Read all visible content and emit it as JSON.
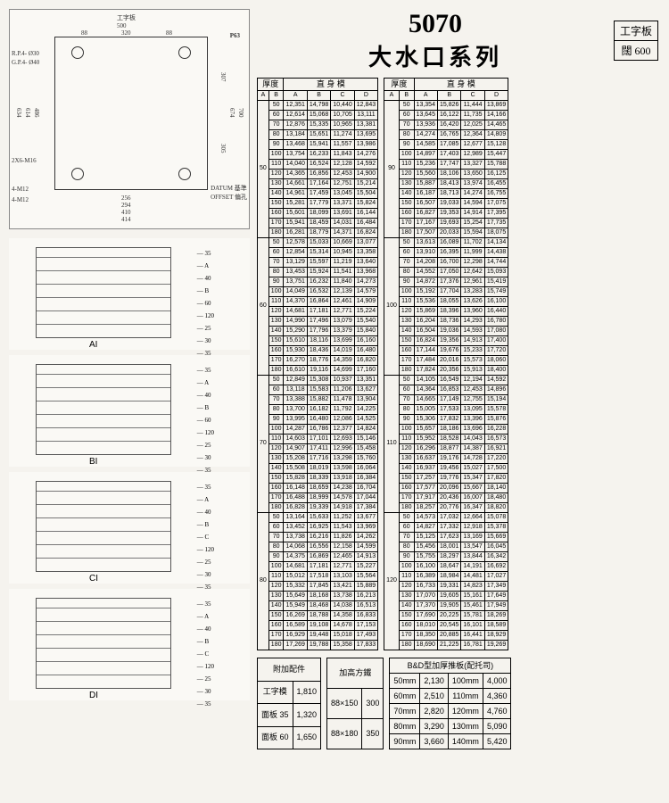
{
  "title": {
    "number": "5070",
    "cn": "大水口系列"
  },
  "sidebox": {
    "line1": "工字板",
    "line2": "闊 600"
  },
  "plan": {
    "top_label": "工字板",
    "dims_top": [
      "500",
      "320",
      "88",
      "88"
    ],
    "p_label": "P63",
    "rp": "R.P.4- Ø30",
    "gp": "G.P.4- Ø40",
    "left_dims": [
      "634",
      "614",
      "486"
    ],
    "right_dims": [
      "674",
      "700",
      "307",
      "305"
    ],
    "bottom_dims": [
      "256",
      "294",
      "410",
      "414"
    ],
    "holes": [
      "2X6-M16",
      "4-M12",
      "4-M12"
    ],
    "datum": "DATUM 基準\nOFFSET 偏孔"
  },
  "molds": [
    {
      "label": "AI",
      "dims": [
        "35",
        "A",
        "40",
        "B",
        "60",
        "120",
        "25",
        "30",
        "35"
      ]
    },
    {
      "label": "BI",
      "dims": [
        "35",
        "A",
        "40",
        "B",
        "60",
        "120",
        "25",
        "30",
        "35"
      ]
    },
    {
      "label": "CI",
      "dims": [
        "35",
        "A",
        "40",
        "B",
        "C",
        "120",
        "25",
        "30",
        "35"
      ]
    },
    {
      "label": "DI",
      "dims": [
        "35",
        "A",
        "40",
        "B",
        "C",
        "120",
        "25",
        "30",
        "35"
      ]
    }
  ],
  "table_header": {
    "thick": "厚度",
    "body": "直  身  模",
    "cols": [
      "A",
      "B",
      "A",
      "B",
      "C",
      "D"
    ]
  },
  "left_groups": [
    {
      "a": "50",
      "rows": [
        [
          "50",
          "12,351",
          "14,798",
          "10,440",
          "12,843"
        ],
        [
          "60",
          "12,614",
          "15,068",
          "10,705",
          "13,111"
        ],
        [
          "70",
          "12,876",
          "15,335",
          "10,965",
          "13,381"
        ],
        [
          "80",
          "13,184",
          "15,651",
          "11,274",
          "13,695"
        ],
        [
          "90",
          "13,468",
          "15,941",
          "11,557",
          "13,986"
        ],
        [
          "100",
          "13,754",
          "16,233",
          "11,843",
          "14,276"
        ],
        [
          "110",
          "14,040",
          "16,524",
          "12,128",
          "14,592"
        ],
        [
          "120",
          "14,365",
          "16,856",
          "12,453",
          "14,900"
        ],
        [
          "130",
          "14,661",
          "17,164",
          "12,751",
          "15,214"
        ],
        [
          "140",
          "14,961",
          "17,459",
          "13,045",
          "15,504"
        ],
        [
          "150",
          "15,281",
          "17,779",
          "13,371",
          "15,824"
        ],
        [
          "160",
          "15,601",
          "18,099",
          "13,691",
          "16,144"
        ],
        [
          "170",
          "15,941",
          "18,459",
          "14,031",
          "16,484"
        ],
        [
          "180",
          "16,281",
          "18,779",
          "14,371",
          "16,824"
        ]
      ]
    },
    {
      "a": "60",
      "rows": [
        [
          "50",
          "12,578",
          "15,033",
          "10,669",
          "13,077"
        ],
        [
          "60",
          "12,854",
          "15,314",
          "10,945",
          "13,358"
        ],
        [
          "70",
          "13,129",
          "15,597",
          "11,219",
          "13,640"
        ],
        [
          "80",
          "13,453",
          "15,924",
          "11,541",
          "13,968"
        ],
        [
          "90",
          "13,751",
          "16,232",
          "11,840",
          "14,273"
        ],
        [
          "100",
          "14,049",
          "16,532",
          "12,139",
          "14,579"
        ],
        [
          "110",
          "14,370",
          "16,864",
          "12,461",
          "14,909"
        ],
        [
          "120",
          "14,681",
          "17,181",
          "12,771",
          "15,224"
        ],
        [
          "130",
          "14,990",
          "17,496",
          "13,079",
          "15,540"
        ],
        [
          "140",
          "15,290",
          "17,796",
          "13,379",
          "15,840"
        ],
        [
          "150",
          "15,610",
          "18,116",
          "13,699",
          "16,160"
        ],
        [
          "160",
          "15,930",
          "18,436",
          "14,019",
          "16,480"
        ],
        [
          "170",
          "16,270",
          "18,776",
          "14,359",
          "16,820"
        ],
        [
          "180",
          "16,610",
          "19,116",
          "14,699",
          "17,160"
        ]
      ]
    },
    {
      "a": "70",
      "rows": [
        [
          "50",
          "12,849",
          "15,308",
          "10,937",
          "13,351"
        ],
        [
          "60",
          "13,118",
          "15,583",
          "11,206",
          "13,627"
        ],
        [
          "70",
          "13,388",
          "15,882",
          "11,478",
          "13,904"
        ],
        [
          "80",
          "13,700",
          "16,182",
          "11,792",
          "14,225"
        ],
        [
          "90",
          "13,995",
          "16,480",
          "12,086",
          "14,525"
        ],
        [
          "100",
          "14,287",
          "16,786",
          "12,377",
          "14,824"
        ],
        [
          "110",
          "14,603",
          "17,101",
          "12,693",
          "15,146"
        ],
        [
          "120",
          "14,907",
          "17,411",
          "12,996",
          "15,458"
        ],
        [
          "130",
          "15,208",
          "17,716",
          "13,298",
          "15,760"
        ],
        [
          "140",
          "15,508",
          "18,019",
          "13,598",
          "16,064"
        ],
        [
          "150",
          "15,828",
          "18,339",
          "13,918",
          "16,384"
        ],
        [
          "160",
          "16,148",
          "18,659",
          "14,238",
          "16,704"
        ],
        [
          "170",
          "16,488",
          "18,999",
          "14,578",
          "17,044"
        ],
        [
          "180",
          "16,828",
          "19,339",
          "14,918",
          "17,384"
        ]
      ]
    },
    {
      "a": "80",
      "rows": [
        [
          "50",
          "13,164",
          "15,633",
          "11,252",
          "13,677"
        ],
        [
          "60",
          "13,452",
          "16,925",
          "11,543",
          "13,969"
        ],
        [
          "70",
          "13,738",
          "16,216",
          "11,826",
          "14,262"
        ],
        [
          "80",
          "14,068",
          "16,556",
          "12,158",
          "14,599"
        ],
        [
          "90",
          "14,375",
          "16,869",
          "12,465",
          "14,913"
        ],
        [
          "100",
          "14,681",
          "17,181",
          "12,771",
          "15,227"
        ],
        [
          "110",
          "15,012",
          "17,518",
          "13,103",
          "15,564"
        ],
        [
          "120",
          "15,332",
          "17,845",
          "13,421",
          "15,889"
        ],
        [
          "130",
          "15,649",
          "18,168",
          "13,738",
          "16,213"
        ],
        [
          "140",
          "15,949",
          "18,468",
          "14,038",
          "16,513"
        ],
        [
          "150",
          "16,269",
          "18,788",
          "14,358",
          "16,833"
        ],
        [
          "160",
          "16,589",
          "19,108",
          "14,678",
          "17,153"
        ],
        [
          "170",
          "16,929",
          "19,448",
          "15,018",
          "17,493"
        ],
        [
          "180",
          "17,269",
          "19,788",
          "15,358",
          "17,833"
        ]
      ]
    }
  ],
  "right_groups": [
    {
      "a": "90",
      "rows": [
        [
          "50",
          "13,354",
          "15,826",
          "11,444",
          "13,869"
        ],
        [
          "60",
          "13,645",
          "16,122",
          "11,735",
          "14,166"
        ],
        [
          "70",
          "13,936",
          "16,420",
          "12,025",
          "14,465"
        ],
        [
          "80",
          "14,274",
          "16,765",
          "12,364",
          "14,809"
        ],
        [
          "90",
          "14,585",
          "17,085",
          "12,677",
          "15,128"
        ],
        [
          "100",
          "14,897",
          "17,403",
          "12,989",
          "15,447"
        ],
        [
          "110",
          "15,236",
          "17,747",
          "13,327",
          "15,788"
        ],
        [
          "120",
          "15,560",
          "18,106",
          "13,650",
          "16,125"
        ],
        [
          "130",
          "15,887",
          "18,413",
          "13,974",
          "16,455"
        ],
        [
          "140",
          "16,187",
          "18,713",
          "14,274",
          "16,755"
        ],
        [
          "150",
          "16,507",
          "19,033",
          "14,594",
          "17,075"
        ],
        [
          "160",
          "16,827",
          "19,353",
          "14,914",
          "17,395"
        ],
        [
          "170",
          "17,167",
          "19,693",
          "15,254",
          "17,735"
        ],
        [
          "180",
          "17,507",
          "20,033",
          "15,594",
          "18,075"
        ]
      ]
    },
    {
      "a": "100",
      "rows": [
        [
          "50",
          "13,613",
          "16,089",
          "11,702",
          "14,134"
        ],
        [
          "60",
          "13,910",
          "16,395",
          "11,999",
          "14,438"
        ],
        [
          "70",
          "14,208",
          "16,700",
          "12,298",
          "14,744"
        ],
        [
          "80",
          "14,552",
          "17,050",
          "12,642",
          "15,093"
        ],
        [
          "90",
          "14,872",
          "17,376",
          "12,961",
          "15,419"
        ],
        [
          "100",
          "15,192",
          "17,704",
          "13,283",
          "15,749"
        ],
        [
          "110",
          "15,536",
          "18,055",
          "13,626",
          "16,100"
        ],
        [
          "120",
          "15,869",
          "18,396",
          "13,960",
          "16,440"
        ],
        [
          "130",
          "16,204",
          "18,736",
          "14,293",
          "16,780"
        ],
        [
          "140",
          "16,504",
          "19,036",
          "14,593",
          "17,080"
        ],
        [
          "150",
          "16,824",
          "19,356",
          "14,913",
          "17,400"
        ],
        [
          "160",
          "17,144",
          "19,676",
          "15,233",
          "17,720"
        ],
        [
          "170",
          "17,484",
          "20,016",
          "15,573",
          "18,060"
        ],
        [
          "180",
          "17,824",
          "20,356",
          "15,913",
          "18,400"
        ]
      ]
    },
    {
      "a": "110",
      "rows": [
        [
          "50",
          "14,105",
          "16,549",
          "12,194",
          "14,592"
        ],
        [
          "60",
          "14,364",
          "16,853",
          "12,453",
          "14,896"
        ],
        [
          "70",
          "14,665",
          "17,149",
          "12,755",
          "15,194"
        ],
        [
          "80",
          "15,005",
          "17,533",
          "13,095",
          "15,578"
        ],
        [
          "90",
          "15,306",
          "17,832",
          "13,396",
          "15,876"
        ],
        [
          "100",
          "15,657",
          "18,186",
          "13,696",
          "16,228"
        ],
        [
          "110",
          "15,952",
          "18,528",
          "14,043",
          "16,573"
        ],
        [
          "120",
          "16,296",
          "18,877",
          "14,387",
          "16,921"
        ],
        [
          "130",
          "16,637",
          "19,176",
          "14,728",
          "17,220"
        ],
        [
          "140",
          "16,937",
          "19,456",
          "15,027",
          "17,500"
        ],
        [
          "150",
          "17,257",
          "19,776",
          "15,347",
          "17,820"
        ],
        [
          "160",
          "17,577",
          "20,096",
          "15,667",
          "18,140"
        ],
        [
          "170",
          "17,917",
          "20,436",
          "16,007",
          "18,480"
        ],
        [
          "180",
          "18,257",
          "20,776",
          "16,347",
          "18,820"
        ]
      ]
    },
    {
      "a": "120",
      "rows": [
        [
          "50",
          "14,573",
          "17,032",
          "12,664",
          "15,078"
        ],
        [
          "60",
          "14,827",
          "17,332",
          "12,918",
          "15,378"
        ],
        [
          "70",
          "15,125",
          "17,623",
          "13,169",
          "15,669"
        ],
        [
          "80",
          "15,456",
          "18,001",
          "13,547",
          "16,045"
        ],
        [
          "90",
          "15,755",
          "18,297",
          "13,844",
          "16,342"
        ],
        [
          "100",
          "16,100",
          "18,647",
          "14,191",
          "16,692"
        ],
        [
          "110",
          "16,389",
          "18,984",
          "14,481",
          "17,027"
        ],
        [
          "120",
          "16,733",
          "19,331",
          "14,823",
          "17,349"
        ],
        [
          "130",
          "17,070",
          "19,605",
          "15,161",
          "17,649"
        ],
        [
          "140",
          "17,370",
          "19,905",
          "15,461",
          "17,949"
        ],
        [
          "150",
          "17,690",
          "20,225",
          "15,781",
          "18,269"
        ],
        [
          "160",
          "18,010",
          "20,545",
          "16,101",
          "18,589"
        ],
        [
          "170",
          "18,350",
          "20,885",
          "16,441",
          "18,929"
        ],
        [
          "180",
          "18,690",
          "21,225",
          "16,781",
          "19,269"
        ]
      ]
    }
  ],
  "addons": {
    "title": "附加配件",
    "rows": [
      [
        "工字模",
        "1,810"
      ],
      [
        "面板 35",
        "1,320"
      ],
      [
        "面板 60",
        "1,650"
      ]
    ]
  },
  "square_iron": {
    "title": "加高方鐵",
    "rows": [
      [
        "88×150",
        "300"
      ],
      [
        "88×180",
        "350"
      ]
    ]
  },
  "bd_plate": {
    "title": "B&D型加厚推板(配托司)",
    "rows": [
      [
        "50mm",
        "2,130",
        "100mm",
        "4,000"
      ],
      [
        "60mm",
        "2,510",
        "110mm",
        "4,360"
      ],
      [
        "70mm",
        "2,820",
        "120mm",
        "4,760"
      ],
      [
        "80mm",
        "3,290",
        "130mm",
        "5,090"
      ],
      [
        "90mm",
        "3,660",
        "140mm",
        "5,420"
      ]
    ]
  }
}
